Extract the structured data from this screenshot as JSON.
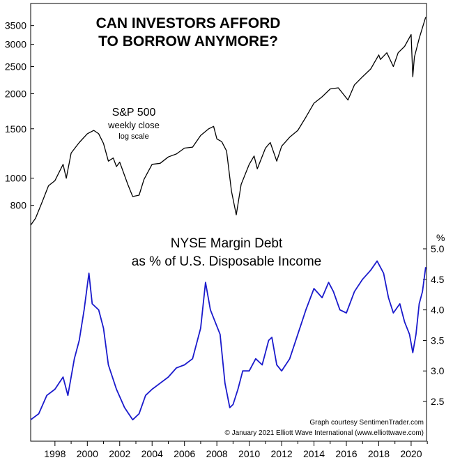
{
  "chart_data": [
    {
      "type": "line",
      "title": "CAN INVESTORS AFFORD",
      "title_line2": "TO BORROW ANYMORE?",
      "series_label": "S&P 500",
      "series_sublabel": "weekly close",
      "scale_note": "log scale",
      "y_scale": "log",
      "y_ticks": [
        800,
        1000,
        1500,
        2000,
        2500,
        3000,
        3500
      ],
      "ylim": [
        700,
        3850
      ],
      "line_color": "#000000",
      "x": [
        1996.5,
        1996.8,
        1997.2,
        1997.6,
        1998.0,
        1998.5,
        1998.7,
        1999.0,
        1999.5,
        2000.0,
        2000.4,
        2000.7,
        2001.0,
        2001.3,
        2001.6,
        2001.8,
        2002.0,
        2002.5,
        2002.8,
        2003.2,
        2003.5,
        2004.0,
        2004.5,
        2005.0,
        2005.5,
        2006.0,
        2006.5,
        2007.0,
        2007.5,
        2007.8,
        2008.0,
        2008.3,
        2008.6,
        2008.9,
        2009.2,
        2009.5,
        2010.0,
        2010.3,
        2010.5,
        2011.0,
        2011.3,
        2011.7,
        2012.0,
        2012.5,
        2013.0,
        2013.5,
        2014.0,
        2014.5,
        2015.0,
        2015.5,
        2016.1,
        2016.5,
        2017.0,
        2017.5,
        2018.0,
        2018.1,
        2018.5,
        2018.9,
        2019.2,
        2019.6,
        2020.0,
        2020.1,
        2020.2,
        2020.5,
        2020.9
      ],
      "values": [
        680,
        720,
        820,
        940,
        980,
        1120,
        1000,
        1230,
        1340,
        1440,
        1480,
        1440,
        1330,
        1150,
        1180,
        1100,
        1140,
        950,
        860,
        870,
        990,
        1120,
        1130,
        1190,
        1220,
        1280,
        1290,
        1420,
        1500,
        1530,
        1380,
        1350,
        1250,
        900,
        740,
        950,
        1120,
        1200,
        1080,
        1280,
        1340,
        1150,
        1300,
        1400,
        1480,
        1650,
        1850,
        1950,
        2080,
        2100,
        1900,
        2150,
        2300,
        2450,
        2750,
        2650,
        2800,
        2500,
        2800,
        2950,
        3250,
        2300,
        2700,
        3150,
        3750
      ]
    },
    {
      "type": "line",
      "title": "NYSE Margin Debt",
      "title_line2": "as % of U.S. Disposable Income",
      "y_unit_label": "%",
      "y_ticks": [
        2.5,
        3.0,
        3.5,
        4.0,
        4.5,
        5.0
      ],
      "ylim": [
        1.85,
        5.0
      ],
      "line_color": "#1a1acc",
      "x": [
        1996.5,
        1997.0,
        1997.5,
        1998.0,
        1998.5,
        1998.8,
        1999.2,
        1999.5,
        1999.8,
        2000.1,
        2000.3,
        2000.7,
        2001.0,
        2001.3,
        2001.8,
        2002.3,
        2002.8,
        2003.2,
        2003.6,
        2004.0,
        2004.5,
        2005.0,
        2005.5,
        2006.0,
        2006.5,
        2007.0,
        2007.3,
        2007.6,
        2007.9,
        2008.2,
        2008.5,
        2008.8,
        2009.0,
        2009.3,
        2009.6,
        2010.0,
        2010.4,
        2010.8,
        2011.2,
        2011.4,
        2011.7,
        2012.0,
        2012.5,
        2013.0,
        2013.5,
        2014.0,
        2014.5,
        2014.9,
        2015.2,
        2015.6,
        2016.0,
        2016.5,
        2017.0,
        2017.5,
        2017.9,
        2018.3,
        2018.6,
        2018.9,
        2019.3,
        2019.6,
        2019.9,
        2020.1,
        2020.3,
        2020.5,
        2020.7,
        2020.9
      ],
      "values": [
        2.2,
        2.3,
        2.6,
        2.7,
        2.9,
        2.6,
        3.2,
        3.5,
        4.0,
        4.6,
        4.1,
        4.0,
        3.7,
        3.1,
        2.7,
        2.4,
        2.2,
        2.3,
        2.6,
        2.7,
        2.8,
        2.9,
        3.05,
        3.1,
        3.2,
        3.7,
        4.45,
        4.0,
        3.8,
        3.6,
        2.8,
        2.4,
        2.45,
        2.7,
        3.0,
        3.0,
        3.2,
        3.1,
        3.5,
        3.55,
        3.1,
        3.0,
        3.2,
        3.6,
        4.0,
        4.35,
        4.2,
        4.45,
        4.3,
        4.0,
        3.95,
        4.3,
        4.5,
        4.65,
        4.8,
        4.6,
        4.2,
        3.95,
        4.1,
        3.8,
        3.6,
        3.3,
        3.6,
        4.1,
        4.3,
        4.7
      ]
    }
  ],
  "x_axis": {
    "range": [
      1996.5,
      2020.95
    ],
    "ticks": [
      1998,
      2000,
      2002,
      2004,
      2006,
      2008,
      2010,
      2012,
      2014,
      2016,
      2018,
      2020
    ],
    "tick_labels": [
      "1998",
      "2000",
      "2002",
      "2004",
      "2006",
      "2008",
      "2010",
      "2012",
      "2014",
      "2016",
      "2018",
      "2020"
    ]
  },
  "credits": {
    "line1": "Graph courtesy SentimenTrader.com",
    "line2": "© January 2021 Elliott Wave International (www.elliottwave.com)"
  }
}
